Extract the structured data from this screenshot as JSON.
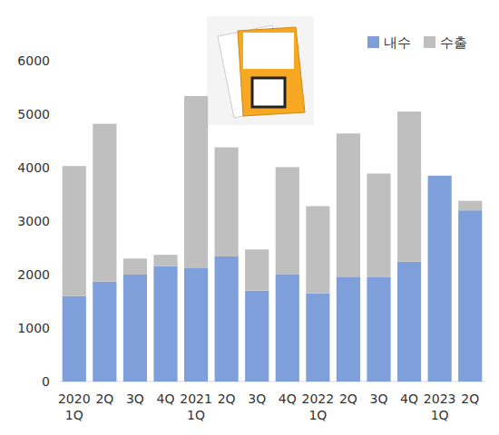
{
  "chart_data": {
    "type": "bar",
    "stacked": true,
    "legend": "top-right",
    "grid": false,
    "categories": [
      "2020\n1Q",
      "2Q",
      "3Q",
      "4Q",
      "2021\n1Q",
      "2Q",
      "3Q",
      "4Q",
      "2022\n1Q",
      "2Q",
      "3Q",
      "4Q",
      "2023\n1Q",
      "2Q"
    ],
    "series": [
      {
        "name": "내수",
        "color": "#7f9fdb",
        "values": [
          1600,
          1870,
          2000,
          2160,
          2130,
          2340,
          1700,
          2010,
          1650,
          1960,
          1950,
          2240,
          3850,
          3200
        ]
      },
      {
        "name": "수출",
        "color": "#bfbfbf",
        "values": [
          2430,
          2950,
          300,
          210,
          3210,
          2040,
          770,
          2000,
          1630,
          2680,
          1940,
          2810,
          0,
          180
        ]
      }
    ],
    "ylim": [
      0,
      6000
    ],
    "yticks": [
      0,
      1000,
      2000,
      3000,
      4000,
      5000,
      6000
    ]
  }
}
